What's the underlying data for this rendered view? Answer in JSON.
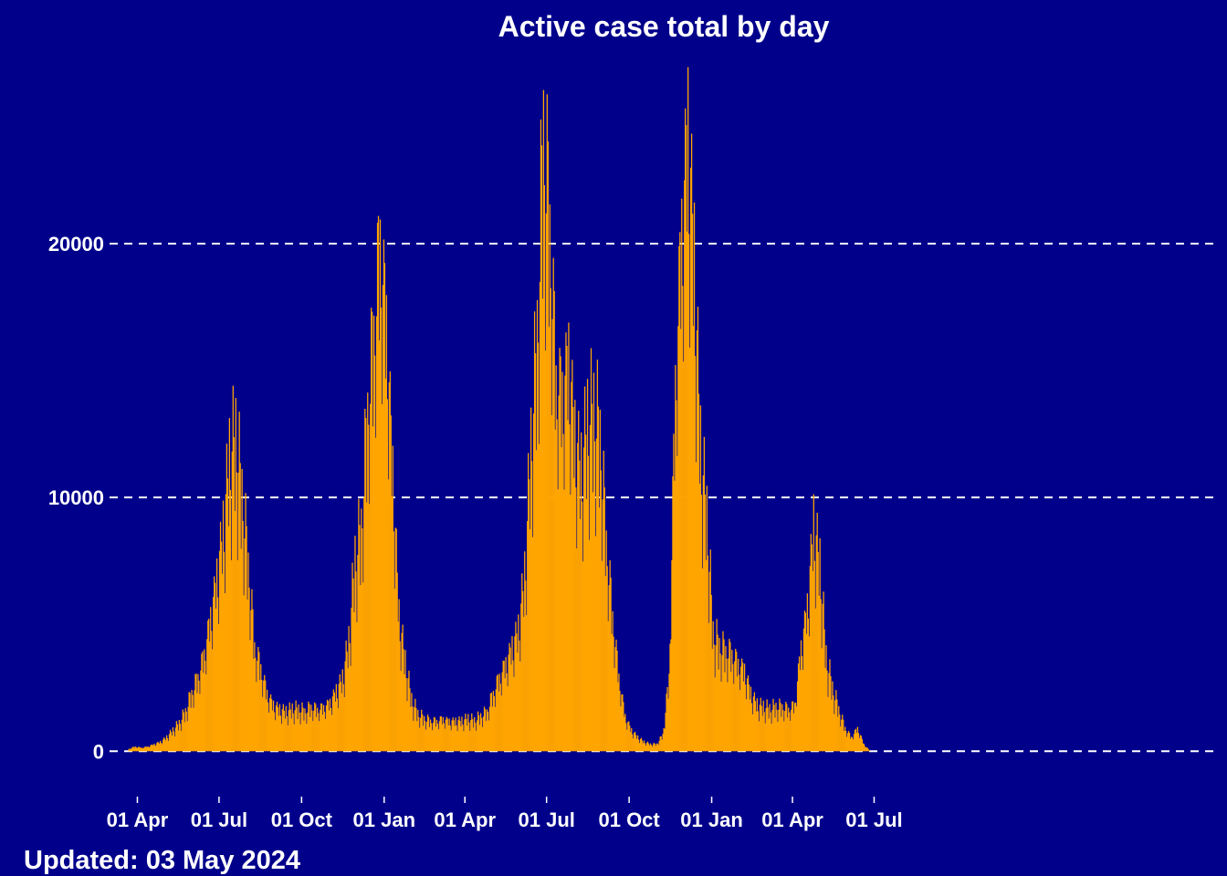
{
  "chart_data": {
    "type": "bar",
    "title": "Active case total by day",
    "footer": "Updated: 03 May 2024",
    "xlabel": "",
    "ylabel": "",
    "series_color": "#FFA500",
    "background_color": "#00008B",
    "text_color": "#FFFFFF",
    "grid": "horizontal dashed",
    "ylim": [
      -1500,
      27800
    ],
    "y_ticks": [
      {
        "value": 0,
        "label": "0"
      },
      {
        "value": 10000,
        "label": "10000"
      },
      {
        "value": 20000,
        "label": "20000"
      }
    ],
    "x_range": [
      "2020-03-01",
      "2023-07-15"
    ],
    "x_ticks": [
      {
        "date": "2020-04-01",
        "label": "01 Apr"
      },
      {
        "date": "2020-07-01",
        "label": "01 Jul"
      },
      {
        "date": "2020-10-01",
        "label": "01 Oct"
      },
      {
        "date": "2021-01-01",
        "label": "01 Jan"
      },
      {
        "date": "2021-04-01",
        "label": "01 Apr"
      },
      {
        "date": "2021-07-01",
        "label": "01 Jul"
      },
      {
        "date": "2021-10-01",
        "label": "01 Oct"
      },
      {
        "date": "2022-01-01",
        "label": "01 Jan"
      },
      {
        "date": "2022-04-01",
        "label": "01 Apr"
      },
      {
        "date": "2022-07-01",
        "label": "01 Jul"
      }
    ],
    "weekly_points": [
      [
        "2020-03-22",
        100
      ],
      [
        "2020-03-29",
        200
      ],
      [
        "2020-04-05",
        150
      ],
      [
        "2020-04-12",
        200
      ],
      [
        "2020-04-19",
        300
      ],
      [
        "2020-04-26",
        400
      ],
      [
        "2020-05-03",
        600
      ],
      [
        "2020-05-10",
        900
      ],
      [
        "2020-05-17",
        1200
      ],
      [
        "2020-05-24",
        1700
      ],
      [
        "2020-05-31",
        2500
      ],
      [
        "2020-06-07",
        3200
      ],
      [
        "2020-06-14",
        4200
      ],
      [
        "2020-06-21",
        5800
      ],
      [
        "2020-06-28",
        7500
      ],
      [
        "2020-07-05",
        9500
      ],
      [
        "2020-07-12",
        12500
      ],
      [
        "2020-07-19",
        13400
      ],
      [
        "2020-07-26",
        11000
      ],
      [
        "2020-08-02",
        8000
      ],
      [
        "2020-08-09",
        4500
      ],
      [
        "2020-08-16",
        3600
      ],
      [
        "2020-08-23",
        2500
      ],
      [
        "2020-08-30",
        2000
      ],
      [
        "2020-09-06",
        1800
      ],
      [
        "2020-09-13",
        1700
      ],
      [
        "2020-09-20",
        1800
      ],
      [
        "2020-09-27",
        1800
      ],
      [
        "2020-10-04",
        1700
      ],
      [
        "2020-10-11",
        1900
      ],
      [
        "2020-10-18",
        1800
      ],
      [
        "2020-10-25",
        1900
      ],
      [
        "2020-11-01",
        2100
      ],
      [
        "2020-11-08",
        2600
      ],
      [
        "2020-11-15",
        3100
      ],
      [
        "2020-11-22",
        4700
      ],
      [
        "2020-11-29",
        8200
      ],
      [
        "2020-12-06",
        9500
      ],
      [
        "2020-12-13",
        14500
      ],
      [
        "2020-12-20",
        18000
      ],
      [
        "2020-12-27",
        22000
      ],
      [
        "2021-01-03",
        18500
      ],
      [
        "2021-01-10",
        12000
      ],
      [
        "2021-01-17",
        5800
      ],
      [
        "2021-01-24",
        3800
      ],
      [
        "2021-01-31",
        2200
      ],
      [
        "2021-02-07",
        1600
      ],
      [
        "2021-02-14",
        1400
      ],
      [
        "2021-02-21",
        1300
      ],
      [
        "2021-02-28",
        1300
      ],
      [
        "2021-03-07",
        1400
      ],
      [
        "2021-03-14",
        1300
      ],
      [
        "2021-03-21",
        1300
      ],
      [
        "2021-03-28",
        1300
      ],
      [
        "2021-04-04",
        1400
      ],
      [
        "2021-04-11",
        1300
      ],
      [
        "2021-04-18",
        1500
      ],
      [
        "2021-04-25",
        1700
      ],
      [
        "2021-05-02",
        2500
      ],
      [
        "2021-05-09",
        3200
      ],
      [
        "2021-05-16",
        3800
      ],
      [
        "2021-05-23",
        4500
      ],
      [
        "2021-05-30",
        5200
      ],
      [
        "2021-06-06",
        7500
      ],
      [
        "2021-06-13",
        13000
      ],
      [
        "2021-06-20",
        17500
      ],
      [
        "2021-06-27",
        26500
      ],
      [
        "2021-07-04",
        22500
      ],
      [
        "2021-07-11",
        16000
      ],
      [
        "2021-07-18",
        15500
      ],
      [
        "2021-07-25",
        17000
      ],
      [
        "2021-08-01",
        13500
      ],
      [
        "2021-08-08",
        12000
      ],
      [
        "2021-08-15",
        14000
      ],
      [
        "2021-08-22",
        14500
      ],
      [
        "2021-08-29",
        13500
      ],
      [
        "2021-09-05",
        9000
      ],
      [
        "2021-09-12",
        5800
      ],
      [
        "2021-09-19",
        3200
      ],
      [
        "2021-09-26",
        1500
      ],
      [
        "2021-10-03",
        900
      ],
      [
        "2021-10-10",
        600
      ],
      [
        "2021-10-17",
        400
      ],
      [
        "2021-10-24",
        300
      ],
      [
        "2021-10-31",
        300
      ],
      [
        "2021-11-07",
        700
      ],
      [
        "2021-11-14",
        3200
      ],
      [
        "2021-11-21",
        16000
      ],
      [
        "2021-11-28",
        22500
      ],
      [
        "2021-12-05",
        27000
      ],
      [
        "2021-12-12",
        21000
      ],
      [
        "2021-12-19",
        13000
      ],
      [
        "2021-12-26",
        10000
      ],
      [
        "2022-01-02",
        5000
      ],
      [
        "2022-01-09",
        4500
      ],
      [
        "2022-01-16",
        4300
      ],
      [
        "2022-01-23",
        4200
      ],
      [
        "2022-01-30",
        3800
      ],
      [
        "2022-02-06",
        3500
      ],
      [
        "2022-02-13",
        2500
      ],
      [
        "2022-02-20",
        2000
      ],
      [
        "2022-02-27",
        1900
      ],
      [
        "2022-03-06",
        1800
      ],
      [
        "2022-03-13",
        1900
      ],
      [
        "2022-03-20",
        1900
      ],
      [
        "2022-03-27",
        1800
      ],
      [
        "2022-04-03",
        2000
      ],
      [
        "2022-04-10",
        4500
      ],
      [
        "2022-04-17",
        6200
      ],
      [
        "2022-04-24",
        9800
      ],
      [
        "2022-05-01",
        8000
      ],
      [
        "2022-05-08",
        4000
      ],
      [
        "2022-05-15",
        2700
      ],
      [
        "2022-05-22",
        1800
      ],
      [
        "2022-05-29",
        1000
      ],
      [
        "2022-06-05",
        600
      ],
      [
        "2022-06-12",
        1000
      ],
      [
        "2022-06-19",
        300
      ],
      [
        "2022-06-26",
        0
      ]
    ]
  }
}
